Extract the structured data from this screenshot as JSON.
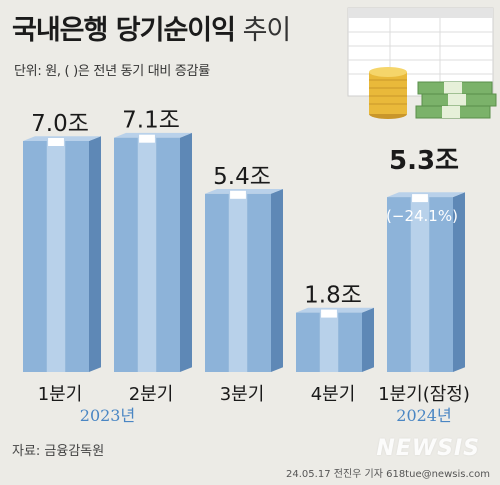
{
  "header": {
    "title_bold": "국내은행 당기순이익",
    "title_light": "추이",
    "subtitle": "단위: 원, ( )은 전년 동기 대비 증감률"
  },
  "footer": {
    "source": "자료: 금융감독원",
    "credit": "24.05.17 전진우 기자 618tue@newsis.com",
    "logo": "NEWSIS"
  },
  "colors": {
    "bar_front": "#8db3d9",
    "bar_side": "#5e88b6",
    "bar_top": "#b9d1ea",
    "bar_stripe": "#bfd6ec",
    "year_text": "#4a86c3"
  },
  "chart_data": {
    "type": "bar",
    "unit": "조 원",
    "categories": [
      "1분기",
      "2분기",
      "3분기",
      "4분기",
      "1분기(잠정)"
    ],
    "years": [
      {
        "label": "2023년",
        "span": [
          0,
          3
        ]
      },
      {
        "label": "2024년",
        "span": [
          4,
          4
        ]
      }
    ],
    "values": [
      7.0,
      7.1,
      5.4,
      1.8,
      5.3
    ],
    "value_labels": [
      "7.0조",
      "7.1조",
      "5.4조",
      "1.8조",
      "5.3조"
    ],
    "change_labels": [
      "",
      "",
      "",
      "",
      "(−24.1%)"
    ],
    "emphasis": [
      false,
      false,
      false,
      false,
      true
    ]
  }
}
